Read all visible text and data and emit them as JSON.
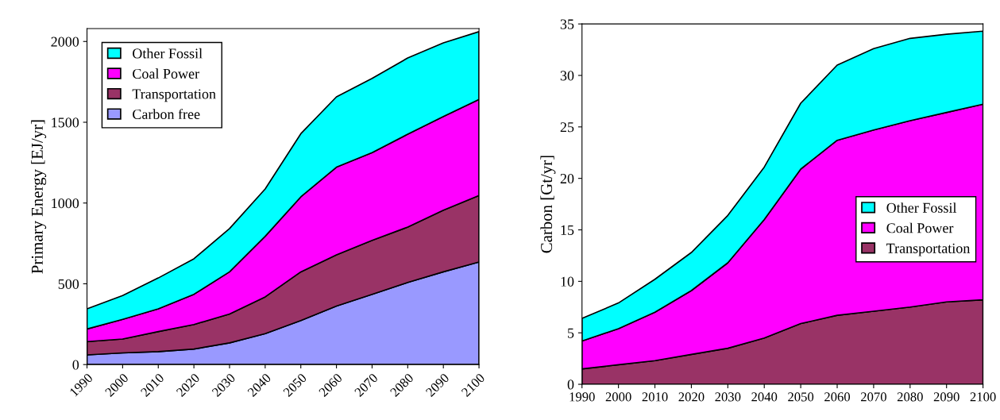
{
  "chart_data": [
    {
      "type": "area",
      "stacked": true,
      "ylabel": "Primary Energy [EJ/yr]",
      "categories": [
        "1990",
        "2000",
        "2010",
        "2020",
        "2030",
        "2040",
        "2050",
        "2060",
        "2070",
        "2080",
        "2090",
        "2100"
      ],
      "ylim": [
        0,
        2080
      ],
      "yticks": [
        0,
        500,
        1000,
        1500,
        2000
      ],
      "grid": false,
      "legend": "top left",
      "series": [
        {
          "name": "Carbon free",
          "color": "#9999ff",
          "values": [
            60,
            72,
            80,
            96,
            134,
            191,
            272,
            362,
            435,
            508,
            574,
            635
          ]
        },
        {
          "name": "Transportation",
          "color": "#993366",
          "values": [
            82,
            86,
            124,
            152,
            179,
            228,
            302,
            317,
            334,
            343,
            382,
            411
          ]
        },
        {
          "name": "Coal Power",
          "color": "#ff00ff",
          "values": [
            78,
            122,
            141,
            187,
            261,
            375,
            464,
            543,
            543,
            575,
            579,
            595
          ]
        },
        {
          "name": "Other Fossil",
          "color": "#00ffff",
          "values": [
            125,
            147,
            191,
            220,
            268,
            293,
            391,
            435,
            459,
            472,
            456,
            420
          ]
        }
      ]
    },
    {
      "type": "area",
      "stacked": true,
      "ylabel": "Carbon [Gt/yr]",
      "categories": [
        "1990",
        "2000",
        "2010",
        "2020",
        "2030",
        "2040",
        "2050",
        "2060",
        "2070",
        "2080",
        "2090",
        "2100"
      ],
      "ylim": [
        0,
        35
      ],
      "yticks": [
        0,
        5,
        10,
        15,
        20,
        25,
        30,
        35
      ],
      "grid": false,
      "legend": "bottom right",
      "series": [
        {
          "name": "Transportation",
          "color": "#993366",
          "values": [
            1.5,
            1.9,
            2.3,
            2.9,
            3.5,
            4.5,
            5.9,
            6.7,
            7.1,
            7.5,
            8.0,
            8.2
          ]
        },
        {
          "name": "Coal Power",
          "color": "#ff00ff",
          "values": [
            2.7,
            3.5,
            4.7,
            6.2,
            8.3,
            11.5,
            15.0,
            17.0,
            17.6,
            18.1,
            18.4,
            19.0
          ]
        },
        {
          "name": "Other Fossil",
          "color": "#00ffff",
          "values": [
            2.2,
            2.5,
            3.2,
            3.7,
            4.6,
            5.1,
            6.4,
            7.3,
            7.9,
            8.0,
            7.6,
            7.1
          ]
        }
      ]
    }
  ]
}
